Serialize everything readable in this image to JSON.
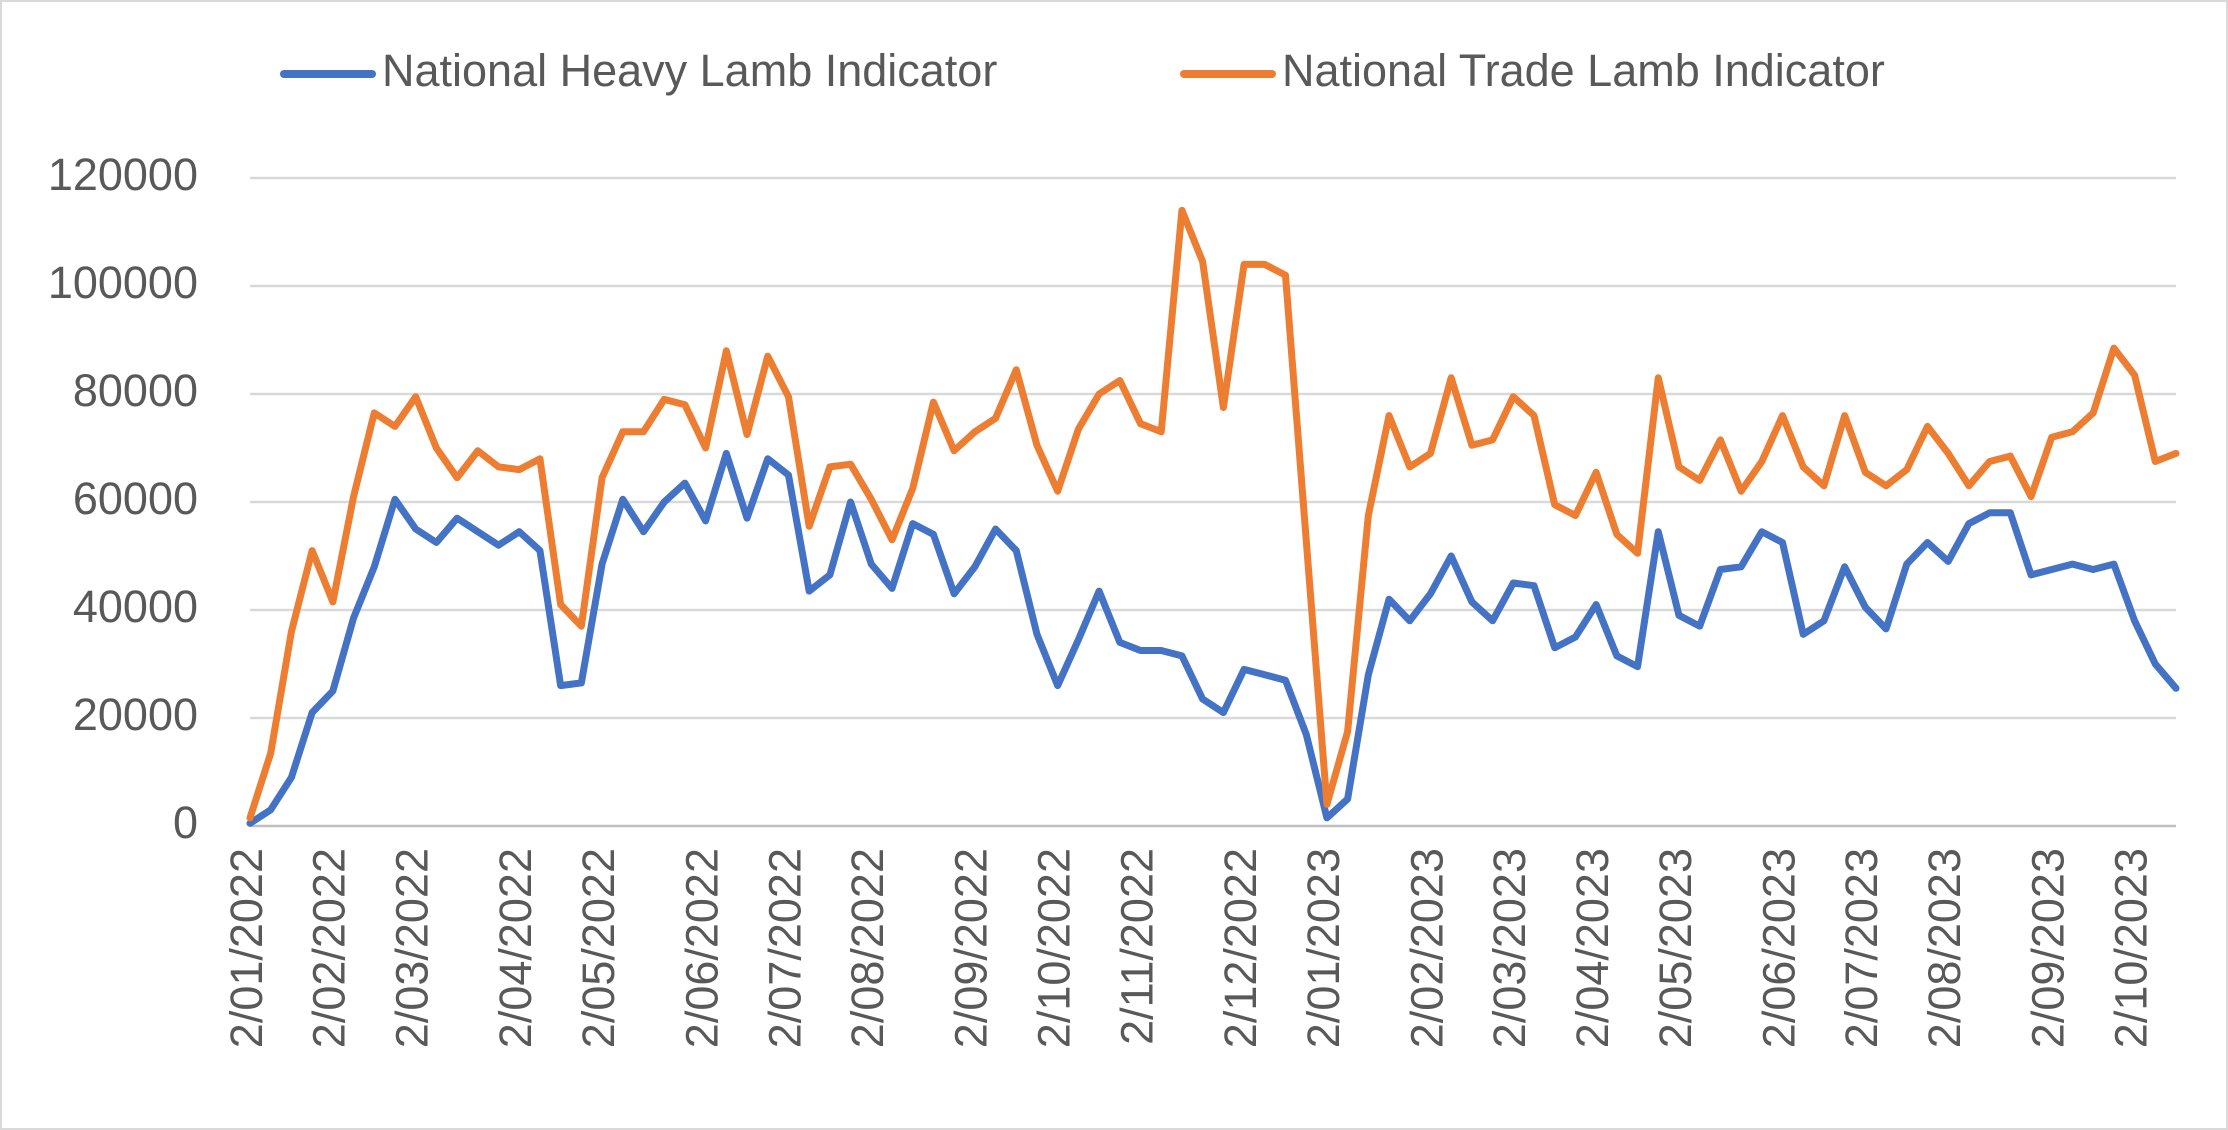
{
  "chart_data": {
    "type": "line",
    "categories": [
      "2/01/2022",
      null,
      null,
      null,
      "2/02/2022",
      null,
      null,
      null,
      "2/03/2022",
      null,
      null,
      null,
      null,
      "2/04/2022",
      null,
      null,
      null,
      "2/05/2022",
      null,
      null,
      null,
      null,
      "2/06/2022",
      null,
      null,
      null,
      "2/07/2022",
      null,
      null,
      null,
      "2/08/2022",
      null,
      null,
      null,
      null,
      "2/09/2022",
      null,
      null,
      null,
      "2/10/2022",
      null,
      null,
      null,
      "2/11/2022",
      null,
      null,
      null,
      null,
      "2/12/2022",
      null,
      null,
      null,
      "2/01/2023",
      null,
      null,
      null,
      null,
      "2/02/2023",
      null,
      null,
      null,
      "2/03/2023",
      null,
      null,
      null,
      "2/04/2023",
      null,
      null,
      null,
      "2/05/2023",
      null,
      null,
      null,
      null,
      "2/06/2023",
      null,
      null,
      null,
      "2/07/2023",
      null,
      null,
      null,
      "2/08/2023",
      null,
      null,
      null,
      null,
      "2/09/2023",
      null,
      null,
      null,
      "2/10/2023",
      null,
      null
    ],
    "series": [
      {
        "name": "National Heavy Lamb Indicator",
        "color": "#4472c4",
        "values": [
          500,
          3000,
          9000,
          21000,
          25000,
          38500,
          48000,
          60500,
          55000,
          52500,
          57000,
          54500,
          52000,
          54500,
          51000,
          26000,
          26500,
          48500,
          60500,
          54500,
          60000,
          63500,
          56500,
          69000,
          57000,
          68000,
          65000,
          43500,
          46500,
          60000,
          48500,
          44000,
          56000,
          54000,
          43000,
          48000,
          55000,
          51000,
          35500,
          26000,
          34500,
          43500,
          34000,
          32500,
          32500,
          31500,
          23500,
          21000,
          29000,
          28000,
          27000,
          17000,
          1500,
          5000,
          28000,
          42000,
          38000,
          43000,
          50000,
          41500,
          38000,
          45000,
          44500,
          33000,
          35000,
          41000,
          31500,
          29500,
          54500,
          39000,
          37000,
          47500,
          48000,
          54500,
          52500,
          35500,
          38000,
          48000,
          40500,
          36500,
          48500,
          52500,
          49000,
          56000,
          58000,
          58000,
          46500,
          47500,
          48500,
          47500,
          48500,
          38000,
          30000,
          25500
        ]
      },
      {
        "name": "National Trade Lamb Indicator",
        "color": "#ed7d31",
        "values": [
          1500,
          13500,
          36000,
          51000,
          41500,
          61000,
          76500,
          74000,
          79500,
          70000,
          64500,
          69500,
          66500,
          66000,
          68000,
          41000,
          37000,
          64500,
          73000,
          73000,
          79000,
          78000,
          70000,
          88000,
          72500,
          87000,
          79500,
          55500,
          66500,
          67000,
          60500,
          53000,
          62500,
          78500,
          69500,
          73000,
          75500,
          84500,
          70500,
          62000,
          73500,
          80000,
          82500,
          74500,
          73000,
          114000,
          104500,
          77500,
          104000,
          104000,
          102000,
          53000,
          4000,
          17500,
          57500,
          76000,
          66500,
          69000,
          83000,
          70500,
          71500,
          79500,
          76000,
          59500,
          57500,
          65500,
          54000,
          50500,
          83000,
          66500,
          64000,
          71500,
          62000,
          67500,
          76000,
          66500,
          63000,
          76000,
          65500,
          63000,
          66000,
          74000,
          69000,
          63000,
          67500,
          68500,
          61000,
          72000,
          73000,
          76500,
          88500,
          83500,
          67500,
          69000
        ]
      }
    ],
    "ylim": [
      0,
      120000
    ],
    "yticks": [
      0,
      20000,
      40000,
      60000,
      80000,
      100000,
      120000
    ],
    "grid": true,
    "legend": "top"
  }
}
